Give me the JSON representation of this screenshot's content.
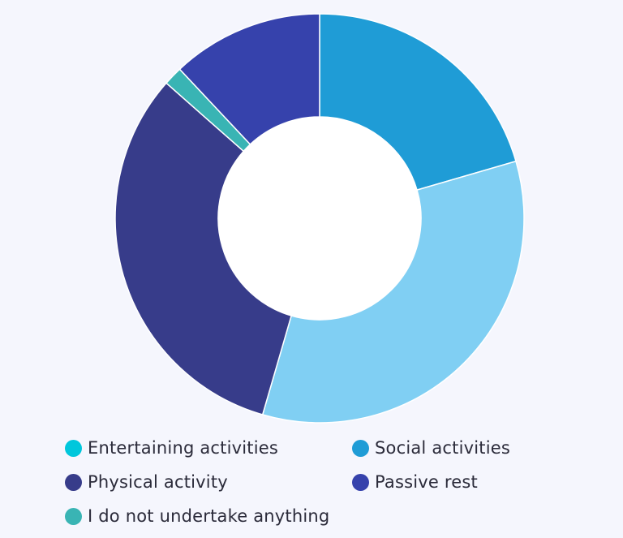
{
  "chart_data": {
    "type": "pie",
    "title": "",
    "donut": true,
    "series": [
      {
        "name": "Entertaining activities",
        "value": 0,
        "color": "#00c7dc"
      },
      {
        "name": "Social activities",
        "value": 20.5,
        "color": "#1f9cd6"
      },
      {
        "name": "Physical activity",
        "value": 32,
        "color": "#373c8a"
      },
      {
        "name": "Passive rest",
        "value": 12,
        "color": "#3642ac"
      },
      {
        "name": "I do not undertake anything",
        "value": 1.5,
        "color": "#39b4b4"
      },
      {
        "name": "",
        "value": 34,
        "color": "#80cff3"
      }
    ],
    "legend_placement": "bottom",
    "legend_order": [
      0,
      1,
      2,
      3,
      4
    ]
  }
}
